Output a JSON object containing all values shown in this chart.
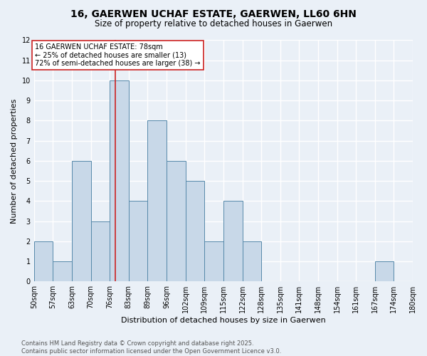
{
  "title_line1": "16, GAERWEN UCHAF ESTATE, GAERWEN, LL60 6HN",
  "title_line2": "Size of property relative to detached houses in Gaerwen",
  "xlabel": "Distribution of detached houses by size in Gaerwen",
  "ylabel": "Number of detached properties",
  "bin_labels": [
    "50sqm",
    "57sqm",
    "63sqm",
    "70sqm",
    "76sqm",
    "83sqm",
    "89sqm",
    "96sqm",
    "102sqm",
    "109sqm",
    "115sqm",
    "122sqm",
    "128sqm",
    "135sqm",
    "141sqm",
    "148sqm",
    "154sqm",
    "161sqm",
    "167sqm",
    "174sqm",
    "180sqm"
  ],
  "counts": [
    2,
    1,
    6,
    3,
    10,
    4,
    8,
    6,
    5,
    2,
    4,
    2,
    0,
    0,
    0,
    0,
    0,
    0,
    1,
    0
  ],
  "bar_color": "#c8d8e8",
  "bar_edge_color": "#5588aa",
  "vline_bin_index": 4.57,
  "vline_color": "#cc2222",
  "annotation_text": "16 GAERWEN UCHAF ESTATE: 78sqm\n← 25% of detached houses are smaller (13)\n72% of semi-detached houses are larger (38) →",
  "annotation_box_color": "white",
  "annotation_box_edge_color": "#cc2222",
  "ylim": [
    0,
    12
  ],
  "yticks": [
    0,
    1,
    2,
    3,
    4,
    5,
    6,
    7,
    8,
    9,
    10,
    11,
    12
  ],
  "footer_text": "Contains HM Land Registry data © Crown copyright and database right 2025.\nContains public sector information licensed under the Open Government Licence v3.0.",
  "background_color": "#eaf0f7",
  "plot_bg_color": "#eaf0f7",
  "grid_color": "white",
  "title_fontsize": 10,
  "subtitle_fontsize": 8.5,
  "xlabel_fontsize": 8,
  "ylabel_fontsize": 8,
  "tick_fontsize": 7,
  "annotation_fontsize": 7,
  "footer_fontsize": 6
}
